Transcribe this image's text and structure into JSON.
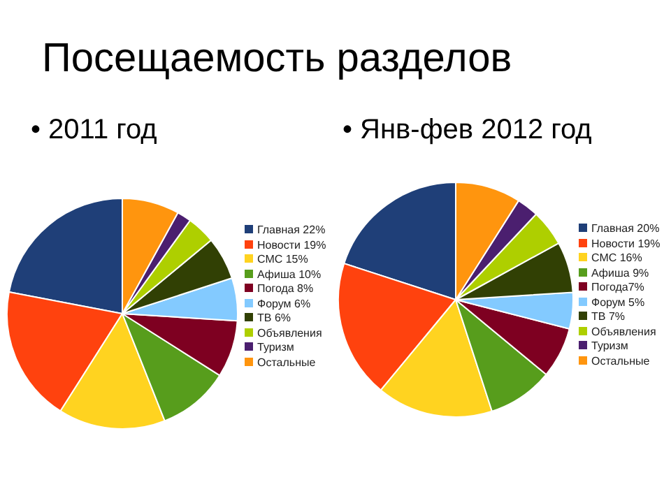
{
  "chart_data": [
    {
      "type": "pie",
      "title": "Посещаемость разделов",
      "subtitle": "• 2011 год",
      "legend": "right",
      "categories": [
        "Главная 22%",
        "Новости 19%",
        "СМС 15%",
        "Афиша 10%",
        "Погода 8%",
        "Форум 6%",
        "ТВ 6%",
        "Объявления",
        "Туризм",
        "Остальные"
      ],
      "values": [
        22,
        19,
        15,
        10,
        8,
        6,
        6,
        4,
        2,
        8
      ],
      "colors": [
        "#1f3f78",
        "#ff420e",
        "#ffd320",
        "#579d1c",
        "#7e0021",
        "#83caff",
        "#314004",
        "#aecf00",
        "#4b1f6f",
        "#ff950e"
      ]
    },
    {
      "type": "pie",
      "subtitle": "• Янв-фев 2012 год",
      "legend": "right",
      "categories": [
        "Главная 20%",
        "Новости 19%",
        "СМС 16%",
        "Афиша 9%",
        "Погода7%",
        "Форум 5%",
        "ТВ 7%",
        "Объявления",
        "Туризм",
        "Остальные"
      ],
      "values": [
        20,
        19,
        16,
        9,
        7,
        5,
        7,
        5,
        3,
        9
      ],
      "colors": [
        "#1f3f78",
        "#ff420e",
        "#ffd320",
        "#579d1c",
        "#7e0021",
        "#83caff",
        "#314004",
        "#aecf00",
        "#4b1f6f",
        "#ff950e"
      ]
    }
  ]
}
